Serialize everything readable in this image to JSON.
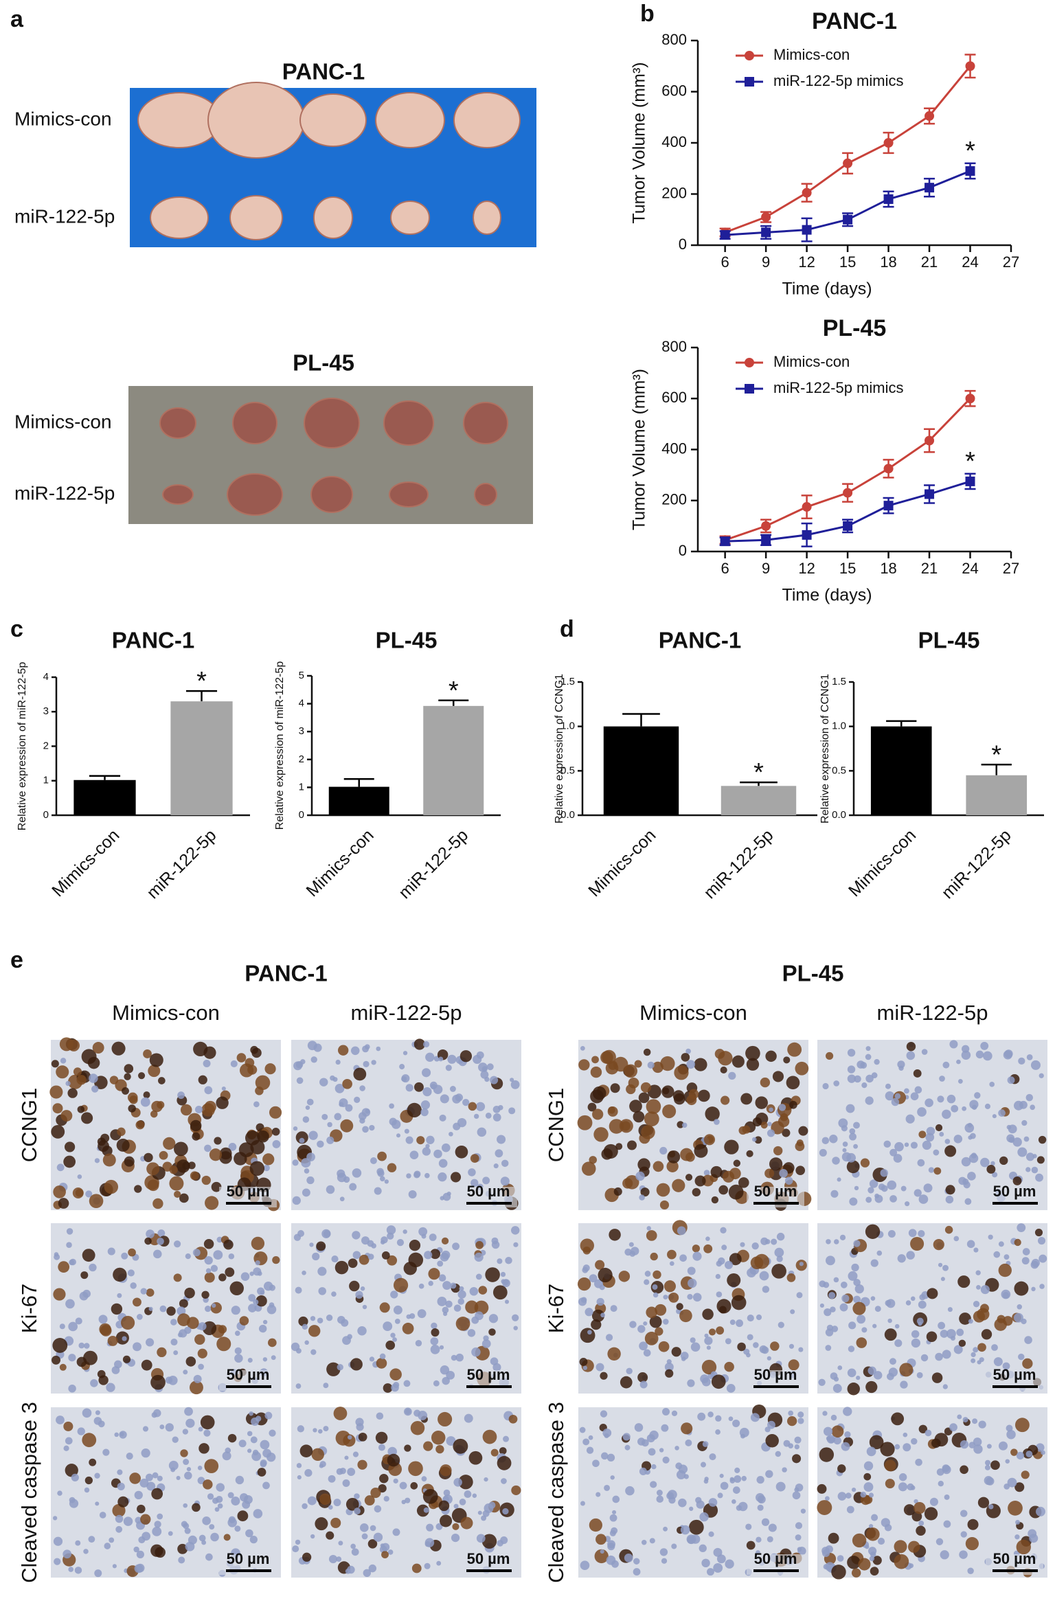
{
  "panel_labels": [
    "a",
    "b",
    "c",
    "d",
    "e"
  ],
  "panel_a": {
    "groups": [
      {
        "title": "PANC-1",
        "rows": [
          "Mimics-con",
          "miR-122-5p"
        ]
      },
      {
        "title": "PL-45",
        "rows": [
          "Mimics-con",
          "miR-122-5p"
        ]
      }
    ]
  },
  "chart_data": [
    {
      "type": "line",
      "title": "PANC-1",
      "x_label": "Time (days)",
      "y_label": "Tumor Volume (mm³)",
      "x": [
        6,
        9,
        12,
        15,
        18,
        21,
        24
      ],
      "xlim": [
        4,
        27
      ],
      "xticks": [
        6,
        9,
        12,
        15,
        18,
        21,
        24,
        27
      ],
      "ylim": [
        0,
        800
      ],
      "yticks": [
        0,
        200,
        400,
        600,
        800
      ],
      "legend": "upper left",
      "significance": "*",
      "series": [
        {
          "name": "Mimics-con",
          "color": "#c8423a",
          "marker": "circle",
          "values": [
            50,
            110,
            205,
            320,
            400,
            505,
            700
          ],
          "errors": [
            15,
            20,
            35,
            40,
            40,
            30,
            45
          ]
        },
        {
          "name": "miR-122-5p mimics",
          "color": "#1f1f99",
          "marker": "square",
          "values": [
            40,
            50,
            60,
            100,
            180,
            225,
            290
          ],
          "errors": [
            15,
            25,
            45,
            25,
            30,
            35,
            30
          ]
        }
      ]
    },
    {
      "type": "line",
      "title": "PL-45",
      "x_label": "Time (days)",
      "y_label": "Tumor Volume (mm³)",
      "x": [
        6,
        9,
        12,
        15,
        18,
        21,
        24
      ],
      "xlim": [
        4,
        27
      ],
      "xticks": [
        6,
        9,
        12,
        15,
        18,
        21,
        24,
        27
      ],
      "ylim": [
        0,
        800
      ],
      "yticks": [
        0,
        200,
        400,
        600,
        800
      ],
      "legend": "upper left",
      "significance": "*",
      "series": [
        {
          "name": "Mimics-con",
          "color": "#c8423a",
          "marker": "circle",
          "values": [
            45,
            100,
            175,
            230,
            325,
            435,
            600
          ],
          "errors": [
            15,
            25,
            45,
            35,
            35,
            45,
            30
          ]
        },
        {
          "name": "miR-122-5p mimics",
          "color": "#1f1f99",
          "marker": "square",
          "values": [
            40,
            45,
            65,
            100,
            180,
            225,
            275
          ],
          "errors": [
            15,
            20,
            45,
            25,
            30,
            35,
            30
          ]
        }
      ]
    },
    {
      "type": "bar",
      "title": "PANC-1",
      "y_label": "Relative expression of miR-122-5p",
      "categories": [
        "Mimics-con",
        "miR-122-5p"
      ],
      "values": [
        1.02,
        3.3
      ],
      "errors": [
        0.12,
        0.3
      ],
      "colors": [
        "#000000",
        "#a6a6a6"
      ],
      "ylim": [
        0,
        4
      ],
      "yticks": [
        0,
        1,
        2,
        3,
        4
      ],
      "significance": "*"
    },
    {
      "type": "bar",
      "title": "PL-45",
      "y_label": "Relative expression of miR-122-5p",
      "categories": [
        "Mimics-con",
        "miR-122-5p"
      ],
      "values": [
        1.02,
        3.92
      ],
      "errors": [
        0.28,
        0.2
      ],
      "colors": [
        "#000000",
        "#a6a6a6"
      ],
      "ylim": [
        0,
        5
      ],
      "yticks": [
        0,
        1,
        2,
        3,
        4,
        5
      ],
      "significance": "*"
    },
    {
      "type": "bar",
      "title": "PANC-1",
      "y_label": "Relative expression of CCNG1",
      "categories": [
        "Mimics-con",
        "miR-122-5p"
      ],
      "values": [
        1.0,
        0.33
      ],
      "errors": [
        0.14,
        0.04
      ],
      "colors": [
        "#000000",
        "#a6a6a6"
      ],
      "ylim": [
        0,
        1.5
      ],
      "yticks": [
        {
          "value": 0,
          "label": "0.0"
        },
        {
          "value": 0.5,
          "label": "0.5"
        },
        {
          "value": 1,
          "label": "1.0"
        },
        {
          "value": 1.5,
          "label": "1.5"
        }
      ],
      "significance": "*"
    },
    {
      "type": "bar",
      "title": "PL-45",
      "y_label": "Relative expression of CCNG1",
      "categories": [
        "Mimics-con",
        "miR-122-5p"
      ],
      "values": [
        1.0,
        0.45
      ],
      "errors": [
        0.06,
        0.12
      ],
      "colors": [
        "#000000",
        "#a6a6a6"
      ],
      "ylim": [
        0,
        1.5
      ],
      "yticks": [
        {
          "value": 0,
          "label": "0.0"
        },
        {
          "value": 0.5,
          "label": "0.5"
        },
        {
          "value": 1,
          "label": "1.0"
        },
        {
          "value": 1.5,
          "label": "1.5"
        }
      ],
      "significance": "*"
    }
  ],
  "panel_e": {
    "groups": [
      {
        "title": "PANC-1",
        "columns": [
          "Mimics-con",
          "miR-122-5p"
        ]
      },
      {
        "title": "PL-45",
        "columns": [
          "Mimics-con",
          "miR-122-5p"
        ]
      }
    ],
    "rows": [
      "CCNG1",
      "Ki-67",
      "Cleaved caspase 3"
    ],
    "scale_bar": "50 µm"
  }
}
